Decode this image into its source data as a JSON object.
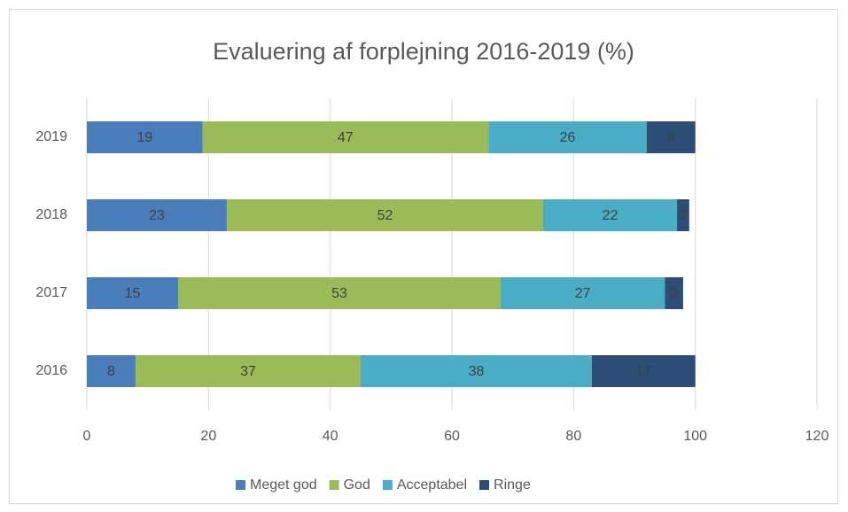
{
  "chart_data": {
    "type": "bar",
    "orientation": "horizontal",
    "stacked": true,
    "title": "Evaluering af forplejning 2016-2019 (%)",
    "categories": [
      "2016",
      "2017",
      "2018",
      "2019"
    ],
    "series": [
      {
        "name": "Meget god",
        "color": "#4a7ebb",
        "values": [
          8,
          15,
          23,
          19
        ]
      },
      {
        "name": "God",
        "color": "#9bbb59",
        "values": [
          37,
          53,
          52,
          47
        ]
      },
      {
        "name": "Acceptabel",
        "color": "#4bacc6",
        "values": [
          38,
          27,
          22,
          26
        ]
      },
      {
        "name": "Ringe",
        "color": "#2c4d75",
        "values": [
          17,
          3,
          2,
          8
        ]
      }
    ],
    "xlim": [
      0,
      120
    ],
    "xticks": [
      0,
      20,
      40,
      60,
      80,
      100,
      120
    ],
    "grid": true,
    "legend": "bottom"
  }
}
